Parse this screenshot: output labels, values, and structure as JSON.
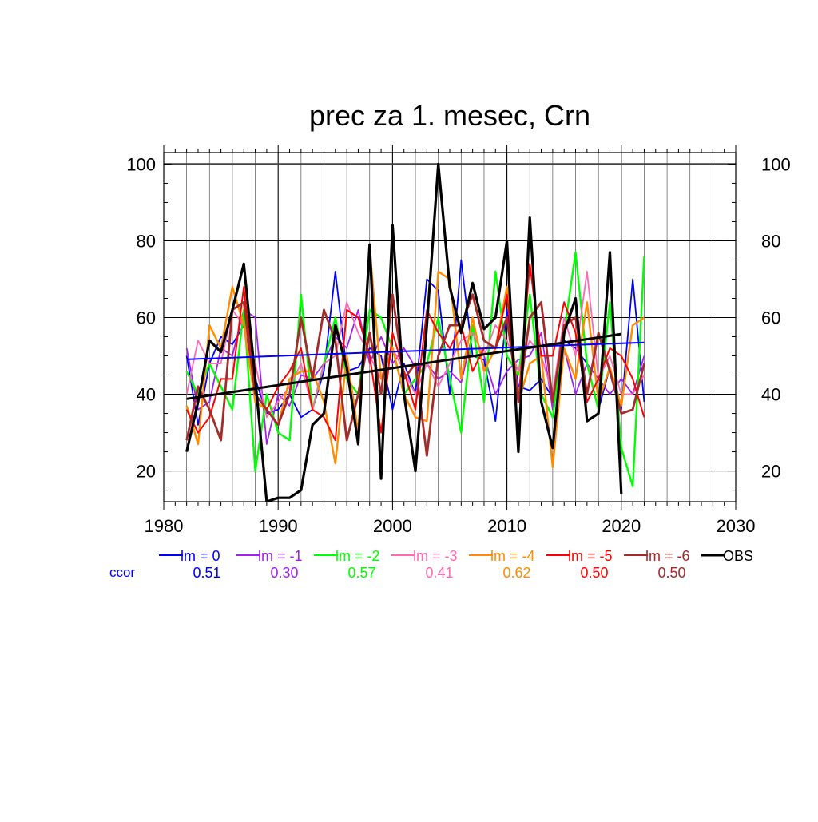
{
  "chart_data": {
    "type": "line",
    "title": "prec za 1. mesec, Crn",
    "xlabel": "",
    "ylabel": "",
    "xlim": [
      1980,
      2030
    ],
    "ylim": [
      12,
      103
    ],
    "x_ticks": [
      1980,
      1990,
      2000,
      2010,
      2020,
      2030
    ],
    "y_ticks": [
      20,
      40,
      60,
      80,
      100
    ],
    "grid": true,
    "legend_position": "bottom",
    "ccor_label": "ccor",
    "x": [
      1982,
      1983,
      1984,
      1985,
      1986,
      1987,
      1988,
      1989,
      1990,
      1991,
      1992,
      1993,
      1994,
      1995,
      1996,
      1997,
      1998,
      1999,
      2000,
      2001,
      2002,
      2003,
      2004,
      2005,
      2006,
      2007,
      2008,
      2009,
      2010,
      2011,
      2012,
      2013,
      2014,
      2015,
      2016,
      2017,
      2018,
      2019,
      2020,
      2021,
      2022
    ],
    "series": [
      {
        "name": "lm = 0",
        "ccor": "0.51",
        "color": "#0000ff",
        "width": 1.8,
        "values": [
          50,
          32,
          48,
          55,
          53,
          58,
          44,
          35,
          36,
          40,
          34,
          36,
          46,
          72,
          46,
          47,
          52,
          50,
          36,
          48,
          40,
          70,
          67,
          40,
          75,
          50,
          49,
          33,
          62,
          42,
          41,
          44,
          39,
          54,
          52,
          48,
          36,
          47,
          36,
          70,
          38
        ]
      },
      {
        "name": "lm = -1",
        "ccor": "0.30",
        "color": "#a020f0",
        "width": 1.8,
        "values": [
          52,
          36,
          38,
          52,
          50,
          62,
          60,
          27,
          40,
          37,
          45,
          44,
          48,
          55,
          52,
          62,
          48,
          55,
          48,
          52,
          47,
          48,
          44,
          46,
          43,
          56,
          50,
          40,
          46,
          49,
          50,
          56,
          36,
          52,
          40,
          48,
          44,
          40,
          44,
          40,
          50
        ]
      },
      {
        "name": "lm = -2",
        "ccor": "0.57",
        "color": "#00ff00",
        "width": 2.4,
        "values": [
          46,
          40,
          48,
          42,
          36,
          62,
          20,
          40,
          30,
          28,
          66,
          36,
          48,
          60,
          44,
          40,
          62,
          60,
          52,
          40,
          44,
          48,
          60,
          44,
          30,
          58,
          38,
          72,
          50,
          45,
          66,
          40,
          34,
          56,
          77,
          48,
          36,
          64,
          26,
          16,
          76
        ]
      },
      {
        "name": "lm = -3",
        "ccor": "0.41",
        "color": "#ff69b4",
        "width": 1.8,
        "values": [
          40,
          54,
          48,
          48,
          62,
          58,
          48,
          34,
          38,
          42,
          48,
          36,
          48,
          50,
          64,
          56,
          50,
          44,
          52,
          46,
          40,
          48,
          42,
          48,
          54,
          56,
          50,
          58,
          54,
          46,
          54,
          50,
          40,
          60,
          50,
          72,
          44,
          50,
          40,
          40,
          45
        ]
      },
      {
        "name": "lm = -4",
        "ccor": "0.62",
        "color": "#ff8c00",
        "width": 2.4,
        "values": [
          37,
          27,
          58,
          52,
          68,
          58,
          38,
          36,
          32,
          44,
          46,
          46,
          38,
          22,
          50,
          30,
          78,
          44,
          52,
          40,
          34,
          33,
          72,
          70,
          44,
          60,
          46,
          52,
          68,
          38,
          48,
          50,
          21,
          52,
          44,
          64,
          38,
          47,
          37,
          58,
          60
        ]
      },
      {
        "name": "lm = -5",
        "ccor": "0.50",
        "color": "#ff0000",
        "width": 2.0,
        "values": [
          36,
          30,
          34,
          44,
          44,
          68,
          40,
          36,
          42,
          46,
          52,
          36,
          34,
          28,
          62,
          60,
          50,
          30,
          56,
          46,
          36,
          62,
          56,
          52,
          58,
          46,
          52,
          52,
          66,
          38,
          74,
          50,
          50,
          64,
          56,
          38,
          44,
          52,
          50,
          44,
          34
        ]
      },
      {
        "name": "lm = -6",
        "ccor": "0.50",
        "color": "#a52a2a",
        "width": 2.8,
        "values": [
          28,
          42,
          36,
          28,
          62,
          64,
          40,
          36,
          32,
          40,
          60,
          44,
          62,
          54,
          28,
          40,
          56,
          40,
          66,
          44,
          48,
          24,
          50,
          58,
          58,
          66,
          54,
          52,
          60,
          38,
          60,
          64,
          38,
          58,
          60,
          40,
          56,
          46,
          35,
          36,
          48
        ]
      }
    ],
    "observed": {
      "name": "OBS",
      "color": "#000000",
      "width": 3.2,
      "x": [
        1982,
        1983,
        1984,
        1985,
        1986,
        1987,
        1988,
        1989,
        1990,
        1991,
        1992,
        1993,
        1994,
        1995,
        1996,
        1997,
        1998,
        1999,
        2000,
        2001,
        2002,
        2003,
        2004,
        2005,
        2006,
        2007,
        2008,
        2009,
        2010,
        2011,
        2012,
        2013,
        2014,
        2015,
        2016,
        2017,
        2018,
        2019,
        2020
      ],
      "values": [
        25,
        38,
        54,
        51,
        62,
        74,
        44,
        12,
        13,
        13,
        15,
        32,
        35,
        58,
        47,
        27,
        79,
        18,
        84,
        40,
        20,
        58,
        100,
        68,
        56,
        69,
        57,
        60,
        80,
        25,
        86,
        38,
        26,
        56,
        65,
        33,
        35,
        77,
        14
      ]
    },
    "trendlines": [
      {
        "series": "lm = 0",
        "color": "#0000ff",
        "width": 2.0,
        "x": [
          1982,
          2022
        ],
        "y": [
          49.1,
          53.5
        ]
      },
      {
        "series": "OBS",
        "color": "#000000",
        "width": 3.0,
        "x": [
          1982,
          2020
        ],
        "y": [
          38.8,
          55.7
        ]
      }
    ]
  }
}
